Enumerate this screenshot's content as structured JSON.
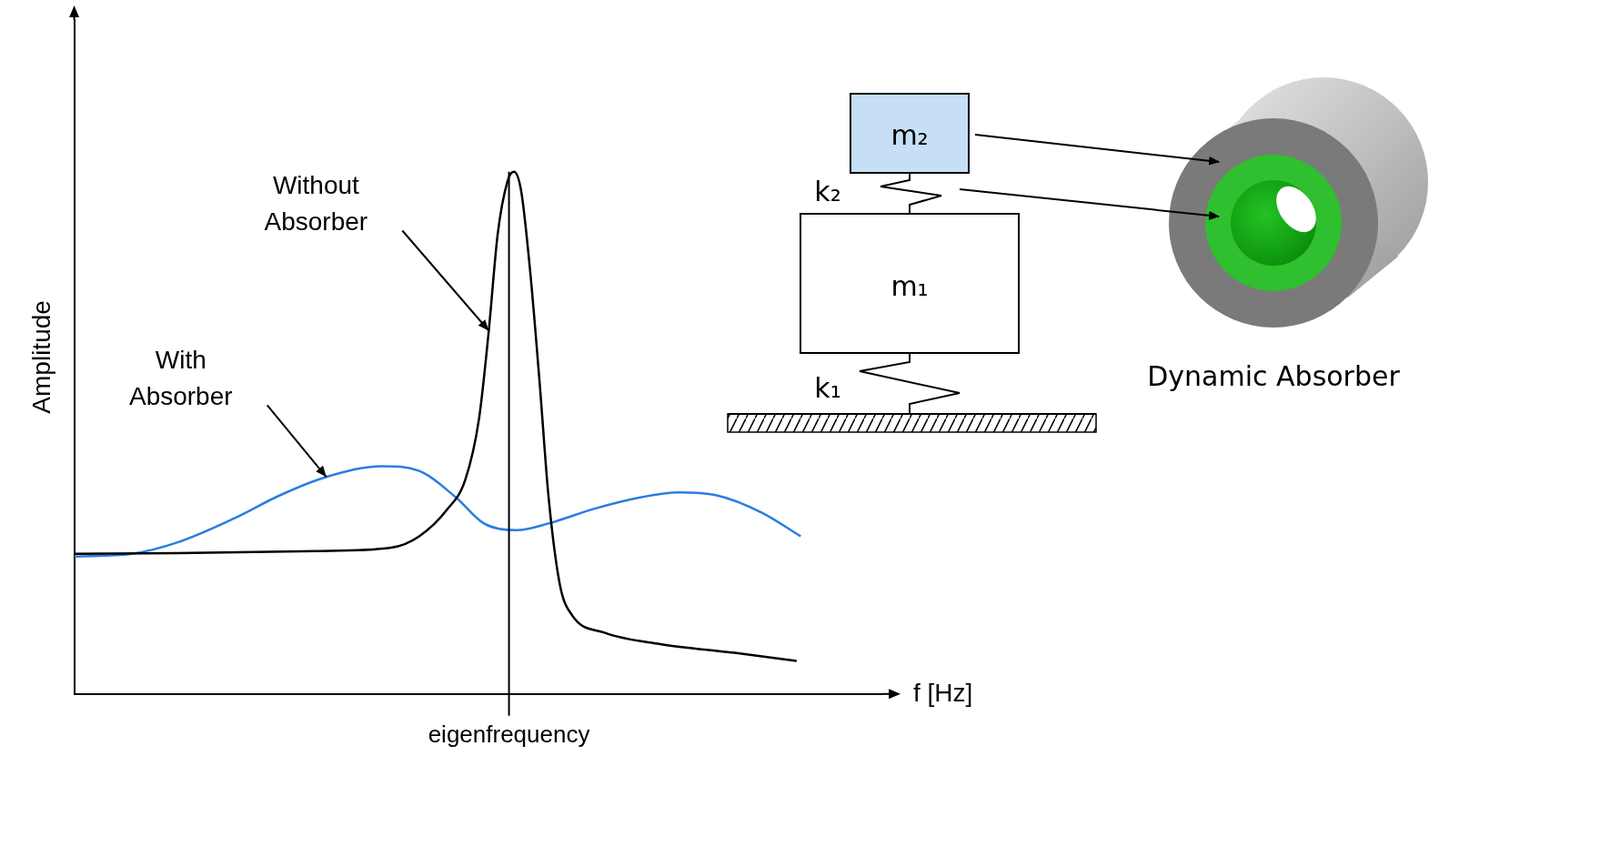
{
  "chart_data": {
    "type": "line",
    "x_label": "f [Hz]",
    "y_label": "Amplitude",
    "xlim": [
      0,
      100
    ],
    "ylim": [
      0,
      100
    ],
    "xticks": [
      {
        "value": 53.8,
        "label": "eigenfrequency"
      }
    ],
    "yticks": [],
    "tick_labels": "x",
    "grid": false,
    "series": [
      {
        "name": "Without Absorber",
        "color": "#000000",
        "marker": "none",
        "line_style": "solid",
        "x": [
          0,
          12.8,
          30.0,
          39.2,
          42.7,
          46.1,
          48.4,
          50.1,
          51.3,
          52.4,
          53.6,
          54.4,
          55.3,
          56.4,
          57.6,
          58.7,
          60.1,
          61.6,
          65.6,
          72.5,
          81.7,
          89.4
        ],
        "values": [
          20.8,
          20.9,
          21.2,
          21.7,
          23.4,
          27.3,
          31.8,
          40.9,
          53.9,
          68.2,
          76.0,
          77.5,
          74.7,
          63.0,
          46.1,
          29.2,
          16.2,
          11.7,
          9.1,
          7.4,
          6.1,
          4.9
        ]
      },
      {
        "name": "With Absorber",
        "color": "#2a7de1",
        "marker": "none",
        "line_style": "solid",
        "x": [
          0,
          7.1,
          12.8,
          19.7,
          25.5,
          31.2,
          38.1,
          42.7,
          47.2,
          50.7,
          54.7,
          58.7,
          64.4,
          70.2,
          74.8,
          79.4,
          85.1,
          89.9
        ],
        "values": [
          20.4,
          20.8,
          22.5,
          26.0,
          29.5,
          32.2,
          33.8,
          33.1,
          29.2,
          25.3,
          24.3,
          25.3,
          27.5,
          29.2,
          29.9,
          29.5,
          26.9,
          23.4
        ]
      }
    ]
  },
  "diagram": {
    "masses": [
      "m₂",
      "m₁"
    ],
    "springs": [
      "k₂",
      "k₁"
    ],
    "component_label": "Dynamic Absorber"
  }
}
